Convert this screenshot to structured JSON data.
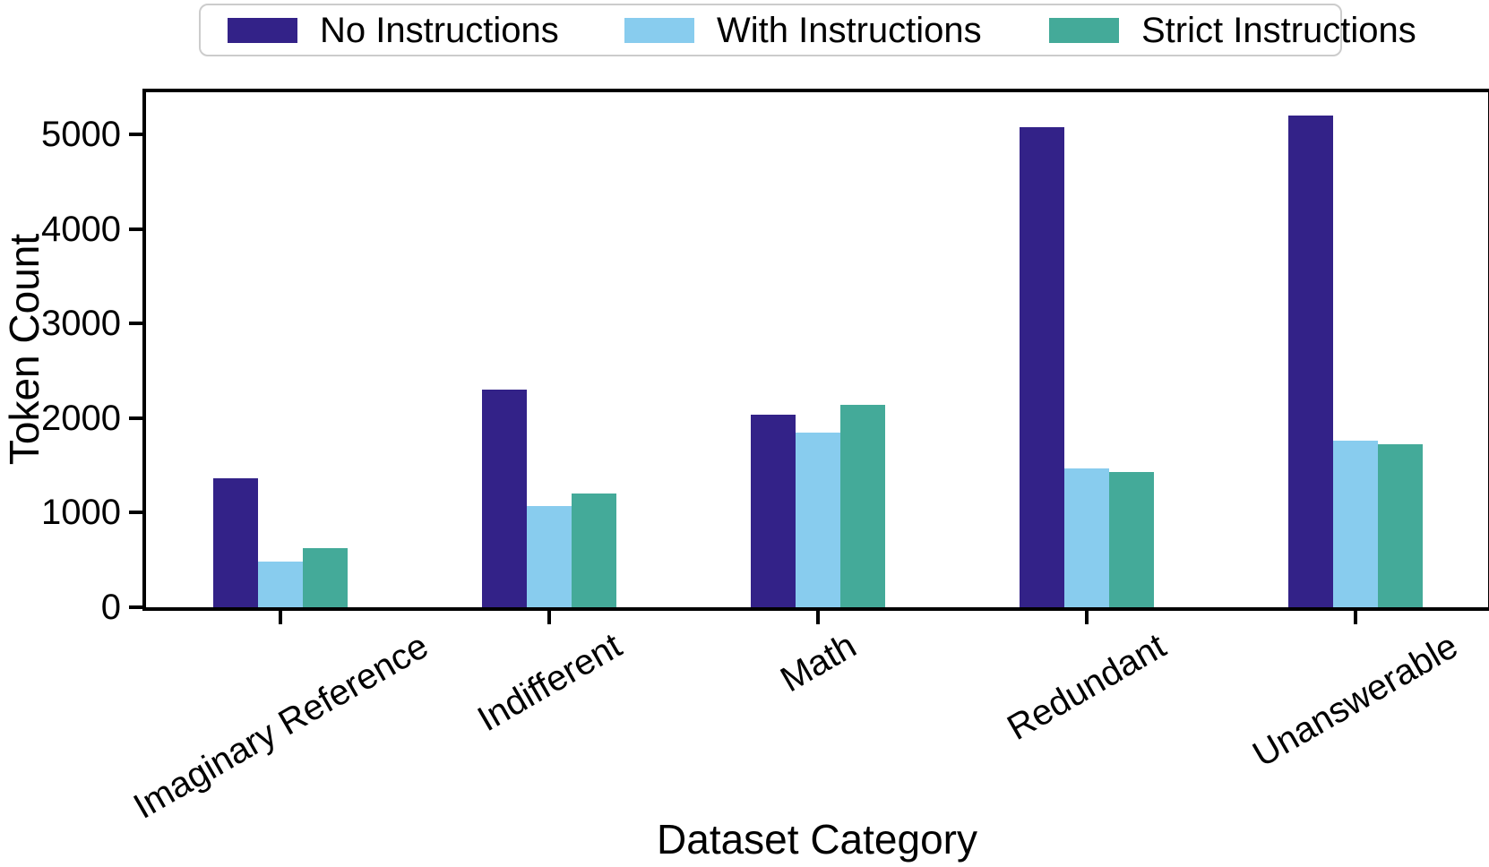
{
  "chart_data": {
    "type": "bar",
    "title": "",
    "xlabel": "Dataset Category",
    "ylabel": "Token Count",
    "categories": [
      "Imaginary Reference",
      "Indifferent",
      "Math",
      "Redundant",
      "Unanswerable"
    ],
    "series": [
      {
        "name": "No Instructions",
        "color": "#332288",
        "values": [
          1370,
          2300,
          2040,
          5085,
          5200
        ]
      },
      {
        "name": "With Instructions",
        "color": "#88CCEE",
        "values": [
          485,
          1075,
          1850,
          1465,
          1765
        ]
      },
      {
        "name": "Strict Instructions",
        "color": "#44AA99",
        "values": [
          630,
          1200,
          2140,
          1435,
          1725
        ]
      }
    ],
    "ylim": [
      0,
      5450
    ],
    "yticks": [
      0,
      1000,
      2000,
      3000,
      4000,
      5000
    ],
    "legend_position": "top center",
    "grid": false,
    "axis_color": "#000000",
    "legend_border_color": "#cccccc"
  }
}
